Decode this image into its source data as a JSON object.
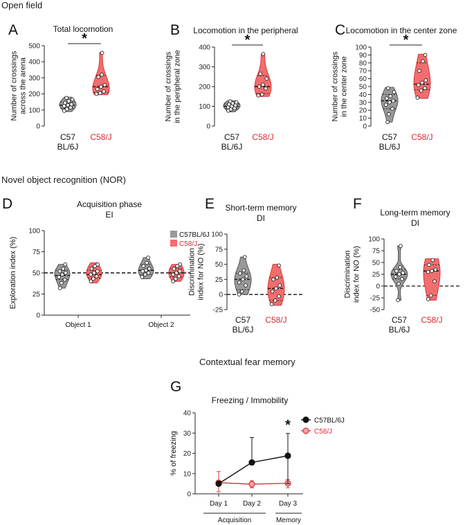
{
  "colors": {
    "c57_fill": "#999999",
    "c57_stroke": "#555555",
    "c58_fill": "#f26d6d",
    "c58_stroke": "#d9363e",
    "c58_text": "#d8282f",
    "black": "#111111"
  },
  "sections": {
    "open_field": "Open field",
    "nor": "Novel object recognition (NOR)",
    "fear": "Contextual fear memory"
  },
  "chart_data": [
    {
      "id": "A",
      "type": "violin",
      "panel_label": "A",
      "title": "Total locomotion",
      "ylabel": [
        "Number of crossings",
        "across the arena"
      ],
      "ylim": [
        0,
        500
      ],
      "yticks": [
        0,
        100,
        200,
        300,
        400,
        500
      ],
      "categories": [
        "C57 BL/6J",
        "C58/J"
      ],
      "cat_lines": [
        [
          "C57",
          "BL/6J"
        ],
        [
          "C58/J"
        ]
      ],
      "significance": "*",
      "series": [
        {
          "name": "C57BL/6J",
          "median": 130,
          "q1": 110,
          "q3": 150,
          "min": 90,
          "max": 180,
          "points": [
            95,
            105,
            115,
            125,
            130,
            135,
            145,
            155,
            165,
            175
          ]
        },
        {
          "name": "C58/J",
          "median": 245,
          "q1": 210,
          "q3": 315,
          "min": 195,
          "max": 458,
          "points": [
            200,
            205,
            215,
            230,
            245,
            255,
            305,
            320,
            455
          ]
        }
      ]
    },
    {
      "id": "B",
      "type": "violin",
      "panel_label": "B",
      "title": "Locomotion in the peripheral",
      "ylabel": [
        "Number of crossings",
        "in the peripheral zone"
      ],
      "ylim": [
        0,
        400
      ],
      "yticks": [
        0,
        100,
        200,
        300,
        400
      ],
      "categories": [
        "C57 BL/6J",
        "C58/J"
      ],
      "cat_lines": [
        [
          "C57",
          "BL/6J"
        ],
        [
          "C58/J"
        ]
      ],
      "significance": "*",
      "series": [
        {
          "name": "C57BL/6J",
          "median": 100,
          "q1": 88,
          "q3": 112,
          "min": 72,
          "max": 128,
          "points": [
            78,
            85,
            90,
            95,
            100,
            105,
            110,
            115,
            120,
            125
          ]
        },
        {
          "name": "C58/J",
          "median": 200,
          "q1": 165,
          "q3": 255,
          "min": 150,
          "max": 365,
          "points": [
            155,
            160,
            190,
            200,
            210,
            240,
            265,
            365
          ]
        }
      ]
    },
    {
      "id": "C",
      "type": "violin",
      "panel_label": "C",
      "title": "Locomotion in the center zone",
      "ylabel": [
        "Number of crossings",
        "in the center zone"
      ],
      "ylim": [
        0,
        100
      ],
      "yticks": [
        0,
        10,
        20,
        30,
        40,
        50,
        60,
        70,
        80,
        90,
        100
      ],
      "categories": [
        "C57 BL/6J",
        "C58/J"
      ],
      "cat_lines": [
        [
          "C57",
          "BL/6J"
        ],
        [
          "C58/J"
        ]
      ],
      "significance": "*",
      "series": [
        {
          "name": "C57BL/6J",
          "median": 32,
          "q1": 22,
          "q3": 40,
          "min": 5,
          "max": 49,
          "points": [
            5,
            15,
            22,
            27,
            30,
            32,
            35,
            38,
            43,
            48
          ]
        },
        {
          "name": "C58/J",
          "median": 53,
          "q1": 46,
          "q3": 80,
          "min": 35,
          "max": 91,
          "points": [
            36,
            45,
            48,
            52,
            55,
            58,
            70,
            82,
            90
          ]
        }
      ]
    },
    {
      "id": "D",
      "type": "violin",
      "panel_label": "D",
      "title": "Acquisition phase",
      "subtitle": "EI",
      "ylabel": [
        "Exploration index (%)"
      ],
      "ylim": [
        0,
        100
      ],
      "yticks": [
        0,
        25,
        50,
        75,
        100
      ],
      "categories": [
        "Object 1",
        "Object 2"
      ],
      "reference_line": 50,
      "legend": [
        "C57BL/6J",
        "C58/J"
      ],
      "series": [
        {
          "name": "C57BL/6J",
          "groups": [
            {
              "median": 47,
              "q1": 42,
              "q3": 53,
              "min": 32,
              "max": 60,
              "points": [
                32,
                38,
                42,
                45,
                48,
                50,
                52,
                55,
                60
              ]
            },
            {
              "median": 53,
              "q1": 48,
              "q3": 60,
              "min": 43,
              "max": 68,
              "points": [
                45,
                48,
                50,
                52,
                53,
                55,
                58,
                62,
                68
              ]
            }
          ]
        },
        {
          "name": "C58/J",
          "groups": [
            {
              "median": 48,
              "q1": 44,
              "q3": 53,
              "min": 38,
              "max": 62,
              "points": [
                40,
                43,
                46,
                48,
                50,
                52,
                55,
                58,
                60
              ]
            },
            {
              "median": 50,
              "q1": 45,
              "q3": 55,
              "min": 40,
              "max": 60,
              "points": [
                40,
                43,
                46,
                48,
                50,
                52,
                55,
                58,
                60
              ]
            }
          ]
        }
      ]
    },
    {
      "id": "E",
      "type": "violin",
      "panel_label": "E",
      "title": "Short-term memory",
      "subtitle": "DI",
      "ylabel": [
        "Discrimination",
        "index for NO (%)"
      ],
      "ylim": [
        -25,
        100
      ],
      "yticks": [
        -25,
        0,
        25,
        50,
        75,
        100
      ],
      "categories": [
        "C57 BL/6J",
        "C58/J"
      ],
      "cat_lines": [
        [
          "C57",
          "BL/6J"
        ],
        [
          "C58/J"
        ]
      ],
      "reference_line": 0,
      "series": [
        {
          "name": "C57BL/6J",
          "median": 25,
          "q1": 8,
          "q3": 35,
          "min": 0,
          "max": 62,
          "points": [
            0,
            5,
            15,
            20,
            25,
            30,
            35,
            40,
            62
          ]
        },
        {
          "name": "C58/J",
          "median": 10,
          "q1": -10,
          "q3": 28,
          "min": -18,
          "max": 50,
          "points": [
            -16,
            -10,
            -3,
            5,
            10,
            15,
            25,
            28,
            48
          ]
        }
      ]
    },
    {
      "id": "F",
      "type": "violin",
      "panel_label": "F",
      "title": "Long-term memory",
      "subtitle": "DI",
      "ylabel": [
        "Discrimination",
        "index for NO (%)"
      ],
      "ylim": [
        -50,
        100
      ],
      "yticks": [
        -50,
        -25,
        0,
        25,
        50,
        75,
        100
      ],
      "categories": [
        "C57 BL/6J",
        "C58/J"
      ],
      "cat_lines": [
        [
          "C57",
          "BL/6J"
        ],
        [
          "C58/J"
        ]
      ],
      "reference_line": 0,
      "series": [
        {
          "name": "C57BL/6J",
          "median": 25,
          "q1": 15,
          "q3": 35,
          "min": -30,
          "max": 85,
          "points": [
            -30,
            5,
            15,
            20,
            25,
            28,
            32,
            40,
            85
          ]
        },
        {
          "name": "C58/J",
          "median": 32,
          "q1": -20,
          "q3": 45,
          "min": -30,
          "max": 58,
          "points": [
            -28,
            -20,
            10,
            30,
            32,
            35,
            45,
            55
          ]
        }
      ]
    },
    {
      "id": "G",
      "type": "line",
      "panel_label": "G",
      "title": "Freezing / Immobility",
      "ylabel": [
        "% of freezing"
      ],
      "ylim": [
        0,
        40
      ],
      "yticks": [
        0,
        10,
        20,
        30,
        40
      ],
      "categories": [
        "Day 1",
        "Day 2",
        "Day 3"
      ],
      "groups_below": [
        {
          "label": "Acquisition",
          "span": [
            "Day 1",
            "Day 2"
          ]
        },
        {
          "label": "Memory",
          "span": [
            "Day 3",
            "Day 3"
          ]
        }
      ],
      "significance": {
        "at": "Day 3",
        "text": "*"
      },
      "legend": [
        "C57BL/6J",
        "C58/J"
      ],
      "series": [
        {
          "name": "C57BL/6J",
          "values": [
            5.0,
            15.5,
            18.8
          ],
          "err_low": [
            4.0,
            15.5,
            5.0
          ],
          "err_high": [
            6.0,
            27.8,
            29.8
          ]
        },
        {
          "name": "C58/J",
          "values": [
            5.5,
            4.8,
            5.2
          ],
          "err_low": [
            1.0,
            3.0,
            3.0
          ],
          "err_high": [
            11.0,
            6.5,
            7.0
          ]
        }
      ]
    }
  ]
}
